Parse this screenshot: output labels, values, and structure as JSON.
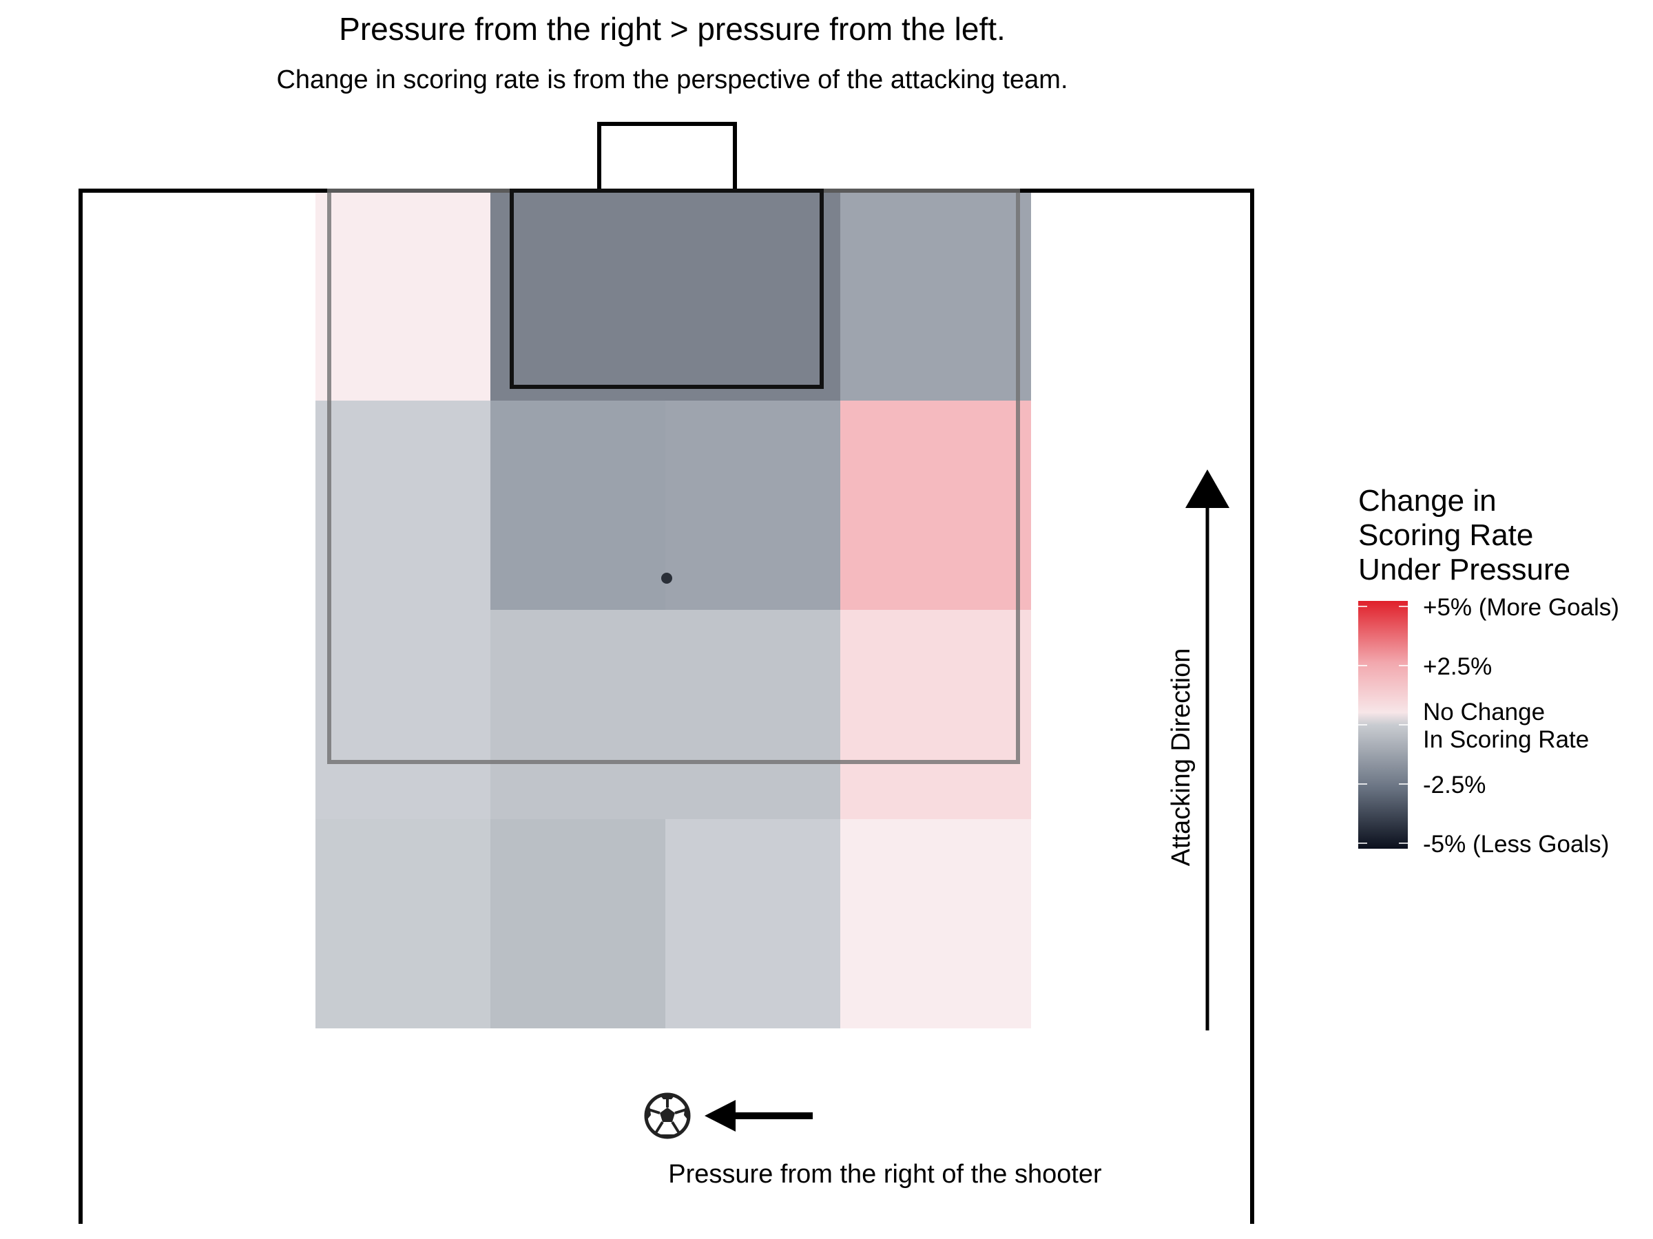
{
  "chart_data": {
    "type": "heatmap",
    "title": "Pressure from the right > pressure from the left.",
    "subtitle": "Change in scoring rate is from the perspective of the attacking team.",
    "x_zones": [
      "wide-left",
      "center-left",
      "center-right",
      "wide-right"
    ],
    "y_zones": [
      "six-yard area",
      "penalty spot",
      "edge of box",
      "outside box"
    ],
    "cells": [
      {
        "row": 0,
        "cols": [
          0,
          0
        ],
        "value": 0.5
      },
      {
        "row": 0,
        "cols": [
          1,
          2
        ],
        "value": -3.2
      },
      {
        "row": 0,
        "cols": [
          3,
          3
        ],
        "value": -2.0
      },
      {
        "row": 1,
        "cols": [
          0,
          0
        ],
        "value": -0.4
      },
      {
        "row": 1,
        "cols": [
          1,
          1
        ],
        "value": -2.1
      },
      {
        "row": 1,
        "cols": [
          2,
          2
        ],
        "value": -2.0
      },
      {
        "row": 1,
        "cols": [
          3,
          3
        ],
        "value": 2.6
      },
      {
        "row": 2,
        "cols": [
          0,
          0
        ],
        "value": -0.4
      },
      {
        "row": 2,
        "cols": [
          1,
          1
        ],
        "value": -0.8
      },
      {
        "row": 2,
        "cols": [
          2,
          2
        ],
        "value": -0.8
      },
      {
        "row": 2,
        "cols": [
          3,
          3
        ],
        "value": 1.2
      },
      {
        "row": 3,
        "cols": [
          0,
          0
        ],
        "value": -0.5
      },
      {
        "row": 3,
        "cols": [
          1,
          1
        ],
        "value": -1.0
      },
      {
        "row": 3,
        "cols": [
          2,
          2
        ],
        "value": -0.4
      },
      {
        "row": 3,
        "cols": [
          3,
          3
        ],
        "value": 0.5
      }
    ],
    "value_range": [
      -5,
      5
    ],
    "colors": {
      "high": "#e0202a",
      "mid_high": "#f2a8ae",
      "mid": "#f7e6e8",
      "mid_low": "#c9ccd1",
      "low_mid": "#6b7584",
      "low": "#0a0f1c"
    },
    "legend": {
      "title_lines": [
        "Change in",
        "Scoring Rate",
        "Under Pressure"
      ],
      "labels": {
        "top": "+5% (More Goals)",
        "upper": "+2.5%",
        "mid_line1": "No Change",
        "mid_line2": "In Scoring Rate",
        "lower": "-2.5%",
        "bottom": "-5% (Less Goals)"
      },
      "placement": "right"
    },
    "annotations": {
      "attacking_direction": "Attacking Direction",
      "pressure_caption": "Pressure from the right of the shooter"
    },
    "icons": {
      "ball": "soccer-ball-icon",
      "pressure_arrow": "arrow-left-icon",
      "direction_arrow": "arrow-up-icon"
    }
  }
}
